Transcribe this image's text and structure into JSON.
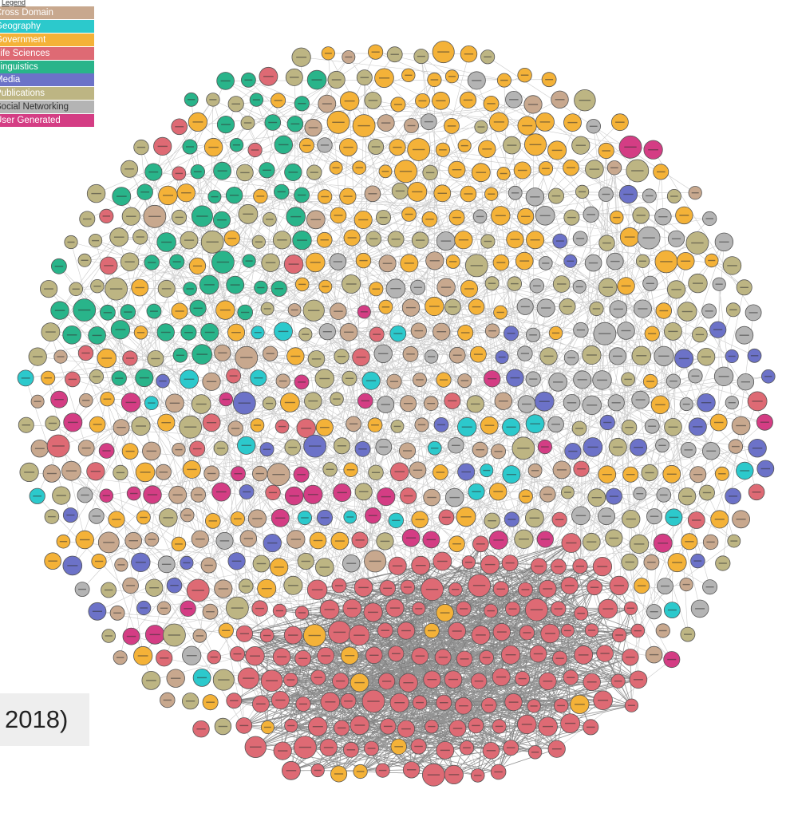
{
  "legend": {
    "title": "Legend",
    "items": [
      {
        "label": "Cross Domain",
        "color": "#c8a88e",
        "light": false
      },
      {
        "label": "Geography",
        "color": "#2cc9cc",
        "light": false
      },
      {
        "label": "Government",
        "color": "#f4b238",
        "light": false
      },
      {
        "label": "Life Sciences",
        "color": "#de6a74",
        "light": false
      },
      {
        "label": "Linguistics",
        "color": "#29b48a",
        "light": false
      },
      {
        "label": "Media",
        "color": "#6c72c8",
        "light": false
      },
      {
        "label": "Publications",
        "color": "#bdb583",
        "light": false
      },
      {
        "label": "Social Networking",
        "color": "#b4b4b4",
        "light": true
      },
      {
        "label": "User Generated",
        "color": "#d43d84",
        "light": false
      }
    ]
  },
  "caption": "2018)",
  "cloud": {
    "edge_color": "#444444",
    "node_stroke": "#555555",
    "regions": [
      {
        "name": "linguistics-cluster",
        "weights": {
          "linguistics": 6,
          "publications": 2,
          "government": 1,
          "lifesciences": 1
        }
      },
      {
        "name": "government-cluster",
        "weights": {
          "government": 5,
          "publications": 2,
          "social": 1,
          "crossdomain": 1
        }
      },
      {
        "name": "publications-cluster",
        "weights": {
          "publications": 5,
          "lifesciences": 2,
          "crossdomain": 1,
          "linguistics": 1
        }
      },
      {
        "name": "lifesciences-cluster",
        "weights": {
          "lifesciences": 10,
          "government": 1
        }
      },
      {
        "name": "social-cluster",
        "weights": {
          "social": 4,
          "government": 2,
          "publications": 2,
          "media": 1
        }
      },
      {
        "name": "mixed-core",
        "weights": {
          "government": 2,
          "publications": 2,
          "crossdomain": 2,
          "usergenerated": 1,
          "geography": 1,
          "social": 1,
          "media": 1,
          "lifesciences": 1
        }
      }
    ]
  }
}
